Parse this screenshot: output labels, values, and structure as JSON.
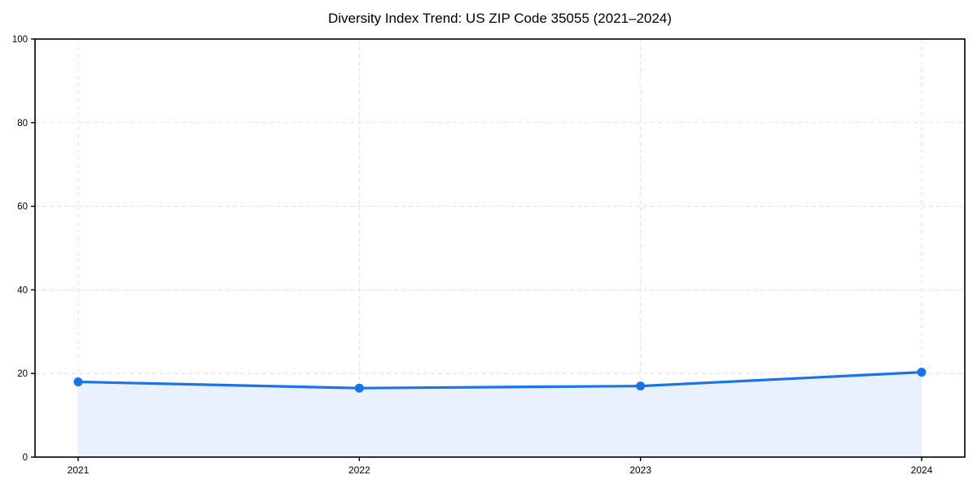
{
  "chart_data": {
    "type": "line",
    "title": "Diversity Index Trend: US ZIP Code 35055 (2021–2024)",
    "xlabel": "",
    "ylabel": "",
    "categories": [
      "2021",
      "2022",
      "2023",
      "2024"
    ],
    "series": [
      {
        "name": "Diversity Index",
        "values": [
          18.0,
          16.5,
          17.0,
          20.3
        ]
      }
    ],
    "ylim": [
      0,
      100
    ],
    "yticks": [
      0,
      20,
      40,
      60,
      80,
      100
    ],
    "grid": true,
    "grid_style": "dashed",
    "legend": false,
    "marker": "circle"
  },
  "colors": {
    "line": "#1a73e8",
    "marker": "#1a73e8",
    "area_fill": "#e8f1fd",
    "grid": "#e0e0e0",
    "frame": "#000000",
    "text": "#000000",
    "background": "#ffffff"
  }
}
